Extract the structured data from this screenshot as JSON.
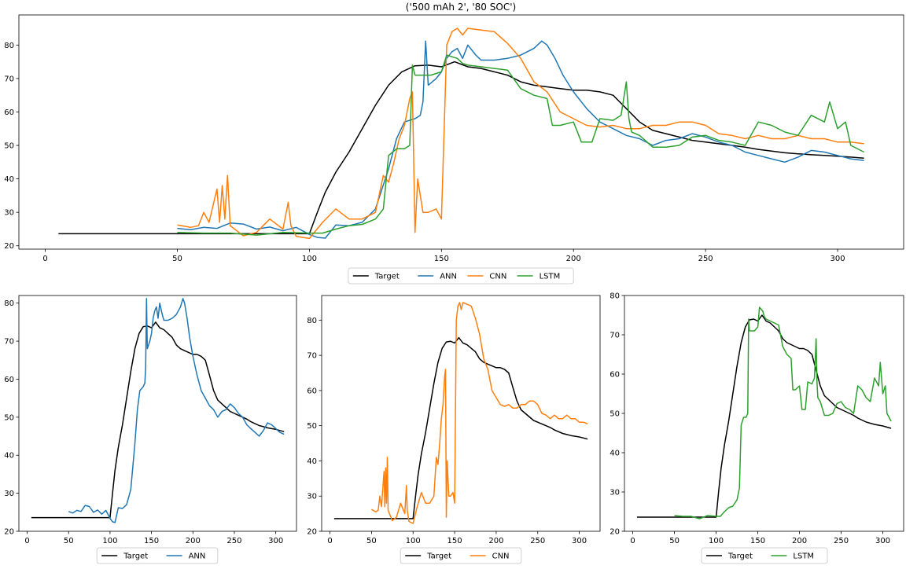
{
  "title": "('500 mAh 2', '80 SOC')",
  "colors": {
    "target": "#000000",
    "ann": "#1f77b4",
    "cnn": "#ff7f0e",
    "lstm": "#2ca02c"
  },
  "chart_data": [
    {
      "type": "line",
      "title": "('500 mAh 2', '80 SOC')",
      "xlim": [
        -10,
        325
      ],
      "ylim": [
        19,
        89
      ],
      "xticks": [
        0,
        50,
        100,
        150,
        200,
        250,
        300
      ],
      "yticks": [
        20,
        30,
        40,
        50,
        60,
        70,
        80
      ],
      "legend": "bottom-center",
      "series": [
        "Target",
        "ANN",
        "CNN",
        "LSTM"
      ]
    },
    {
      "type": "line",
      "xlim": [
        -10,
        325
      ],
      "ylim": [
        20,
        82
      ],
      "xticks": [
        0,
        50,
        100,
        150,
        200,
        250,
        300
      ],
      "yticks": [
        20,
        30,
        40,
        50,
        60,
        70,
        80
      ],
      "legend": "bottom-center",
      "series": [
        "Target",
        "ANN"
      ]
    },
    {
      "type": "line",
      "xlim": [
        -10,
        325
      ],
      "ylim": [
        20,
        87
      ],
      "xticks": [
        0,
        50,
        100,
        150,
        200,
        250,
        300
      ],
      "yticks": [
        20,
        30,
        40,
        50,
        60,
        70,
        80
      ],
      "legend": "bottom-center",
      "series": [
        "Target",
        "CNN"
      ]
    },
    {
      "type": "line",
      "xlim": [
        -10,
        325
      ],
      "ylim": [
        20,
        80
      ],
      "xticks": [
        0,
        50,
        100,
        150,
        200,
        250,
        300
      ],
      "yticks": [
        20,
        30,
        40,
        50,
        60,
        70,
        80
      ],
      "legend": "bottom-center",
      "series": [
        "Target",
        "LSTM"
      ]
    }
  ],
  "series_data": {
    "Target": {
      "x": [
        5,
        20,
        40,
        60,
        80,
        100,
        103,
        106,
        110,
        115,
        120,
        125,
        130,
        135,
        140,
        145,
        150,
        155,
        160,
        165,
        170,
        175,
        180,
        185,
        190,
        195,
        200,
        205,
        210,
        215,
        220,
        225,
        230,
        235,
        240,
        245,
        250,
        255,
        260,
        265,
        270,
        275,
        280,
        285,
        290,
        295,
        300,
        305,
        310
      ],
      "y": [
        23.6,
        23.6,
        23.6,
        23.6,
        23.6,
        23.6,
        30,
        36,
        42,
        48,
        55,
        62,
        68,
        72,
        73.8,
        74,
        73.5,
        75,
        73.5,
        73,
        72,
        71,
        69,
        68,
        67.5,
        67,
        66.5,
        66.5,
        66,
        65,
        61,
        57,
        54.5,
        53.5,
        52.5,
        51.5,
        51,
        50.5,
        50,
        49.5,
        48.8,
        48.3,
        47.8,
        47.5,
        47.2,
        47,
        46.8,
        46.5,
        46.2
      ]
    },
    "ANN": {
      "x": [
        50,
        55,
        60,
        65,
        70,
        75,
        80,
        85,
        90,
        95,
        100,
        103,
        106,
        110,
        115,
        120,
        125,
        130,
        133,
        136,
        140,
        142,
        143,
        144,
        145,
        148,
        150,
        152,
        154,
        156,
        158,
        160,
        163,
        165,
        170,
        175,
        180,
        185,
        188,
        190,
        193,
        196,
        200,
        205,
        210,
        215,
        220,
        225,
        230,
        235,
        240,
        245,
        250,
        255,
        260,
        265,
        270,
        275,
        280,
        285,
        290,
        295,
        300,
        305,
        310
      ],
      "y": [
        25.2,
        24.8,
        25.5,
        25.2,
        26.8,
        26.5,
        25,
        25.6,
        24.5,
        25.5,
        23.4,
        22.5,
        22.3,
        26.2,
        26,
        27,
        31,
        43,
        52,
        57,
        58,
        59,
        63,
        81.2,
        68,
        70,
        72,
        76,
        78,
        79,
        76,
        80,
        77,
        75.5,
        75.5,
        76,
        77,
        79,
        81.2,
        80,
        76,
        71,
        66,
        61,
        57,
        55,
        53,
        52,
        50,
        51.5,
        52,
        53.5,
        52.5,
        51,
        50,
        48,
        47,
        46,
        45,
        46.5,
        48.5,
        48,
        47,
        46,
        45.5
      ]
    },
    "CNN": {
      "x": [
        50,
        55,
        58,
        60,
        62,
        65,
        66,
        67,
        68,
        69,
        70,
        75,
        80,
        85,
        90,
        92,
        93,
        95,
        100,
        105,
        110,
        115,
        120,
        125,
        128,
        130,
        132,
        134,
        136,
        138,
        139,
        140,
        141,
        143,
        145,
        148,
        150,
        152,
        154,
        156,
        158,
        160,
        165,
        170,
        175,
        180,
        185,
        190,
        195,
        200,
        205,
        210,
        215,
        220,
        225,
        230,
        235,
        240,
        245,
        250,
        255,
        260,
        265,
        270,
        275,
        280,
        285,
        290,
        295,
        300,
        305,
        310
      ],
      "y": [
        26.2,
        25.5,
        26,
        30,
        27,
        37,
        27,
        38,
        28,
        41,
        26,
        23,
        24,
        28,
        25,
        33,
        26,
        22.8,
        22.2,
        27,
        31,
        28,
        28,
        30,
        41,
        39,
        45,
        52,
        56,
        64,
        66,
        24,
        40,
        30,
        30,
        31,
        28,
        80,
        84,
        85,
        83,
        85,
        84.5,
        84,
        80.5,
        76,
        69,
        66,
        60,
        58,
        56,
        55.5,
        56,
        55,
        55,
        56,
        56,
        57,
        57,
        56,
        53.5,
        53,
        52,
        53,
        52,
        52,
        53,
        52,
        52,
        51,
        51,
        50.5
      ]
    },
    "LSTM": {
      "x": [
        50,
        60,
        70,
        80,
        90,
        100,
        105,
        110,
        115,
        120,
        125,
        128,
        130,
        133,
        136,
        138,
        139,
        140,
        143,
        146,
        150,
        152,
        154,
        156,
        158,
        160,
        165,
        170,
        175,
        180,
        185,
        190,
        192,
        195,
        200,
        203,
        207,
        210,
        215,
        218,
        220,
        221,
        222,
        225,
        230,
        235,
        240,
        245,
        250,
        255,
        260,
        265,
        270,
        275,
        280,
        285,
        290,
        295,
        297,
        300,
        303,
        305,
        310
      ],
      "y": [
        24,
        23.8,
        23.8,
        23.2,
        24,
        23.8,
        23.8,
        25,
        26,
        26.4,
        28,
        31,
        47,
        49,
        49,
        50,
        74,
        71,
        71,
        71,
        72,
        77,
        76.5,
        76,
        74.5,
        74,
        73.5,
        73,
        72.5,
        67,
        65,
        64,
        56,
        56,
        57,
        51,
        51,
        58,
        57.5,
        59,
        69,
        58,
        54,
        53,
        49.5,
        49.5,
        50,
        52.5,
        53,
        51.5,
        51,
        50,
        57,
        56,
        54,
        53,
        59,
        57,
        63,
        55,
        57,
        50,
        48
      ]
    }
  },
  "legends": [
    [
      "Target",
      "ANN",
      "CNN",
      "LSTM"
    ],
    [
      "Target",
      "ANN"
    ],
    [
      "Target",
      "CNN"
    ],
    [
      "Target",
      "LSTM"
    ]
  ]
}
